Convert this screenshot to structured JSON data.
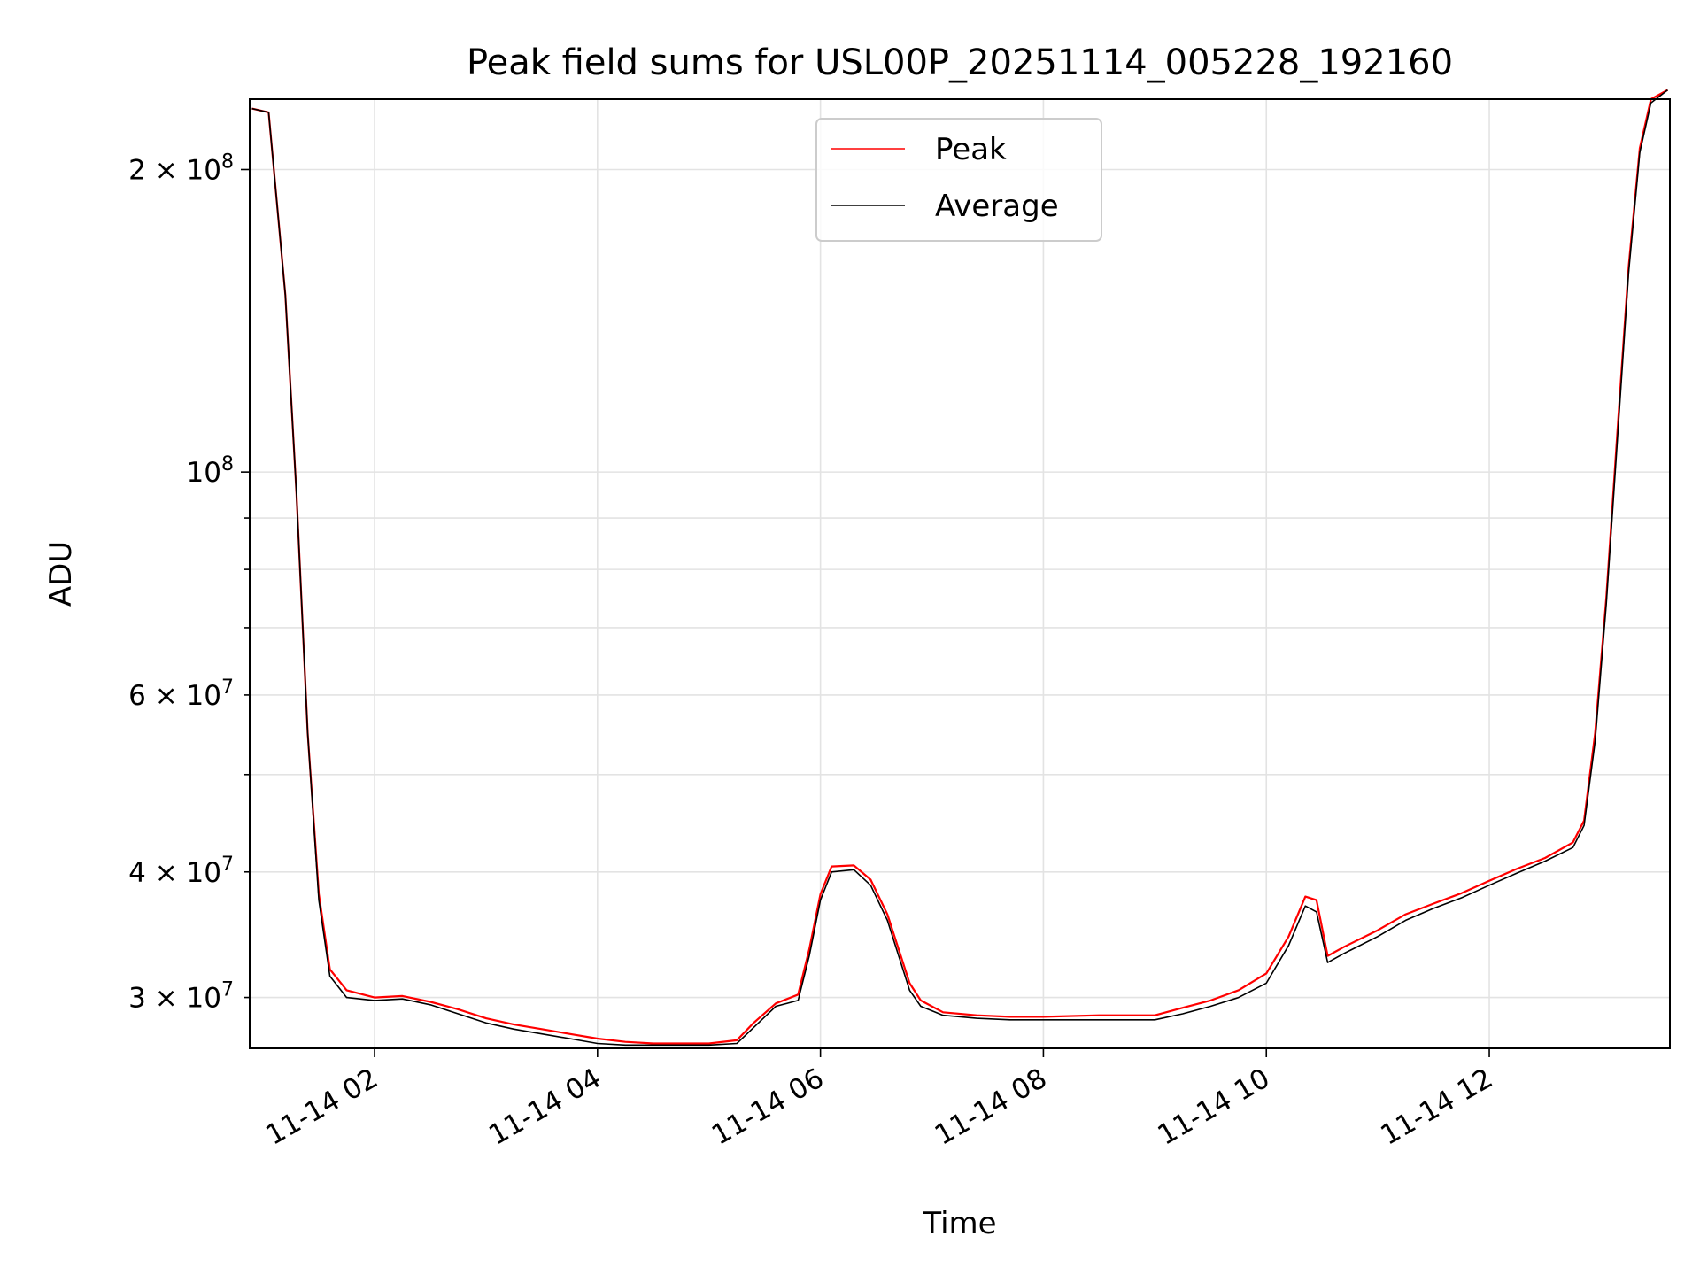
{
  "chart_data": {
    "type": "line",
    "title": "Peak field sums for USL00P_20251114_005228_192160",
    "xlabel": "Time",
    "ylabel": "ADU",
    "yscale": "log",
    "xlim_hours": [
      0.88,
      13.62
    ],
    "ylim": [
      26700000,
      235000000
    ],
    "x_ticks": [
      {
        "hour": 2,
        "label": "11-14 02"
      },
      {
        "hour": 4,
        "label": "11-14 04"
      },
      {
        "hour": 6,
        "label": "11-14 06"
      },
      {
        "hour": 8,
        "label": "11-14 08"
      },
      {
        "hour": 10,
        "label": "11-14 10"
      },
      {
        "hour": 12,
        "label": "11-14 12"
      }
    ],
    "y_major_ticks": [
      {
        "value": 100000000,
        "base": "10",
        "exp": "8",
        "label": "10^8"
      },
      {
        "value": 200000000,
        "mant": "2",
        "base": "10",
        "exp": "8",
        "label": "2 × 10^8"
      }
    ],
    "y_minor_ticks": [
      {
        "value": 30000000,
        "mant": "3",
        "base": "10",
        "exp": "7",
        "label": "3 × 10^7"
      },
      {
        "value": 40000000,
        "mant": "4",
        "base": "10",
        "exp": "7",
        "label": "4 × 10^7"
      },
      {
        "value": 50000000
      },
      {
        "value": 60000000,
        "mant": "6",
        "base": "10",
        "exp": "7",
        "label": "6 × 10^7"
      },
      {
        "value": 70000000
      },
      {
        "value": 80000000
      },
      {
        "value": 90000000
      }
    ],
    "grid": true,
    "legend_position": "top-center",
    "series": [
      {
        "name": "Peak",
        "color": "#ff0000",
        "points": [
          [
            0.9,
            230000000
          ],
          [
            1.05,
            228000000
          ],
          [
            1.2,
            150000000
          ],
          [
            1.3,
            95000000
          ],
          [
            1.4,
            55000000
          ],
          [
            1.5,
            38000000
          ],
          [
            1.6,
            32000000
          ],
          [
            1.75,
            30500000
          ],
          [
            2.0,
            30000000
          ],
          [
            2.25,
            30100000
          ],
          [
            2.5,
            29700000
          ],
          [
            2.75,
            29200000
          ],
          [
            3.0,
            28600000
          ],
          [
            3.25,
            28200000
          ],
          [
            3.5,
            27900000
          ],
          [
            3.75,
            27600000
          ],
          [
            4.0,
            27300000
          ],
          [
            4.25,
            27100000
          ],
          [
            4.5,
            27000000
          ],
          [
            4.75,
            27000000
          ],
          [
            5.0,
            27000000
          ],
          [
            5.25,
            27200000
          ],
          [
            5.4,
            28300000
          ],
          [
            5.6,
            29600000
          ],
          [
            5.8,
            30200000
          ],
          [
            5.9,
            33500000
          ],
          [
            6.0,
            38000000
          ],
          [
            6.1,
            40500000
          ],
          [
            6.3,
            40600000
          ],
          [
            6.45,
            39300000
          ],
          [
            6.6,
            36300000
          ],
          [
            6.8,
            31000000
          ],
          [
            6.9,
            29800000
          ],
          [
            7.1,
            29000000
          ],
          [
            7.4,
            28800000
          ],
          [
            7.7,
            28700000
          ],
          [
            8.0,
            28700000
          ],
          [
            8.5,
            28800000
          ],
          [
            9.0,
            28800000
          ],
          [
            9.25,
            29300000
          ],
          [
            9.5,
            29800000
          ],
          [
            9.75,
            30500000
          ],
          [
            10.0,
            31700000
          ],
          [
            10.2,
            34500000
          ],
          [
            10.35,
            37800000
          ],
          [
            10.45,
            37500000
          ],
          [
            10.55,
            33000000
          ],
          [
            10.7,
            33700000
          ],
          [
            11.0,
            35000000
          ],
          [
            11.25,
            36300000
          ],
          [
            11.5,
            37200000
          ],
          [
            11.75,
            38100000
          ],
          [
            12.0,
            39200000
          ],
          [
            12.25,
            40300000
          ],
          [
            12.5,
            41300000
          ],
          [
            12.75,
            42800000
          ],
          [
            12.85,
            45000000
          ],
          [
            12.95,
            55000000
          ],
          [
            13.05,
            75000000
          ],
          [
            13.15,
            110000000
          ],
          [
            13.25,
            160000000
          ],
          [
            13.35,
            210000000
          ],
          [
            13.45,
            235000000
          ],
          [
            13.6,
            240000000
          ]
        ]
      },
      {
        "name": "Average",
        "color": "#000000",
        "points": [
          [
            0.9,
            230000000
          ],
          [
            1.05,
            228000000
          ],
          [
            1.2,
            150000000
          ],
          [
            1.3,
            95000000
          ],
          [
            1.4,
            55000000
          ],
          [
            1.5,
            37500000
          ],
          [
            1.6,
            31500000
          ],
          [
            1.75,
            30000000
          ],
          [
            2.0,
            29800000
          ],
          [
            2.25,
            29900000
          ],
          [
            2.5,
            29500000
          ],
          [
            2.75,
            28900000
          ],
          [
            3.0,
            28300000
          ],
          [
            3.25,
            27900000
          ],
          [
            3.5,
            27600000
          ],
          [
            3.75,
            27300000
          ],
          [
            4.0,
            27000000
          ],
          [
            4.25,
            26900000
          ],
          [
            4.5,
            26900000
          ],
          [
            4.75,
            26900000
          ],
          [
            5.0,
            26900000
          ],
          [
            5.25,
            27000000
          ],
          [
            5.4,
            28000000
          ],
          [
            5.6,
            29400000
          ],
          [
            5.8,
            29800000
          ],
          [
            5.9,
            33000000
          ],
          [
            6.0,
            37500000
          ],
          [
            6.1,
            40000000
          ],
          [
            6.3,
            40200000
          ],
          [
            6.45,
            38800000
          ],
          [
            6.6,
            35800000
          ],
          [
            6.8,
            30500000
          ],
          [
            6.9,
            29400000
          ],
          [
            7.1,
            28800000
          ],
          [
            7.4,
            28600000
          ],
          [
            7.7,
            28500000
          ],
          [
            8.0,
            28500000
          ],
          [
            8.5,
            28500000
          ],
          [
            9.0,
            28500000
          ],
          [
            9.25,
            28900000
          ],
          [
            9.5,
            29400000
          ],
          [
            9.75,
            30000000
          ],
          [
            10.0,
            31000000
          ],
          [
            10.2,
            33800000
          ],
          [
            10.35,
            37000000
          ],
          [
            10.45,
            36500000
          ],
          [
            10.55,
            32500000
          ],
          [
            10.7,
            33200000
          ],
          [
            11.0,
            34500000
          ],
          [
            11.25,
            35800000
          ],
          [
            11.5,
            36800000
          ],
          [
            11.75,
            37700000
          ],
          [
            12.0,
            38800000
          ],
          [
            12.25,
            39900000
          ],
          [
            12.5,
            41000000
          ],
          [
            12.75,
            42300000
          ],
          [
            12.85,
            44500000
          ],
          [
            12.95,
            54000000
          ],
          [
            13.05,
            74000000
          ],
          [
            13.15,
            108000000
          ],
          [
            13.25,
            158000000
          ],
          [
            13.35,
            208000000
          ],
          [
            13.45,
            233000000
          ],
          [
            13.6,
            240000000
          ]
        ]
      }
    ]
  }
}
